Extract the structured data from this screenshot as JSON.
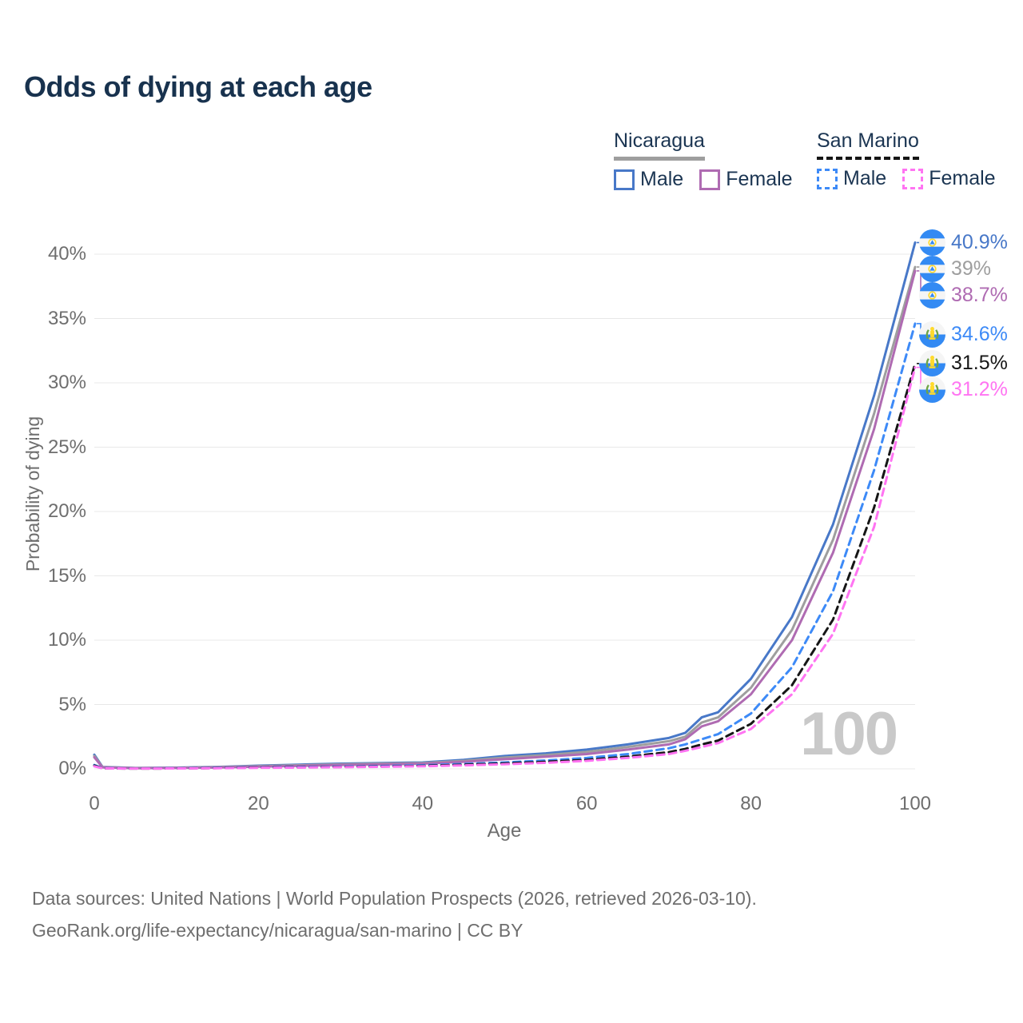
{
  "title": "Odds of dying at each age",
  "legend": {
    "groups": [
      {
        "name": "Nicaragua",
        "line_style": "solid",
        "line_color": "#9e9e9e",
        "items": [
          {
            "label": "Male",
            "color": "#4878c8",
            "style": "solid"
          },
          {
            "label": "Female",
            "color": "#af6bb2",
            "style": "solid"
          }
        ]
      },
      {
        "name": "San Marino",
        "line_style": "dashed",
        "line_color": "#161616",
        "items": [
          {
            "label": "Male",
            "color": "#3d8af7",
            "style": "dashed"
          },
          {
            "label": "Female",
            "color": "#ff74f2",
            "style": "dashed"
          }
        ]
      }
    ]
  },
  "chart_data": {
    "type": "line",
    "title": "Odds of dying at each age",
    "xlabel": "Age",
    "ylabel": "Probability of dying",
    "xlim": [
      0,
      100
    ],
    "ylim": [
      0,
      42
    ],
    "x_ticks": [
      0,
      20,
      40,
      60,
      80,
      100
    ],
    "y_ticks": [
      0,
      5,
      10,
      15,
      20,
      25,
      30,
      35,
      40
    ],
    "y_tick_suffix": "%",
    "grid": true,
    "legend_position": "top-right",
    "watermark": "100",
    "ages": [
      0,
      1,
      5,
      10,
      15,
      20,
      25,
      30,
      35,
      40,
      45,
      50,
      55,
      60,
      65,
      70,
      72,
      74,
      76,
      80,
      85,
      90,
      95,
      100
    ],
    "series": [
      {
        "name": "Nicaragua Male",
        "color": "#4878c8",
        "dashed": false,
        "flag": "nicaragua",
        "end_label": "40.9%",
        "values": [
          1.1,
          0.15,
          0.07,
          0.09,
          0.15,
          0.25,
          0.33,
          0.4,
          0.45,
          0.5,
          0.7,
          1.0,
          1.2,
          1.5,
          1.9,
          2.4,
          2.8,
          4.0,
          4.4,
          7.0,
          11.8,
          19.0,
          29.0,
          40.9
        ]
      },
      {
        "name": "Nicaragua Both Sexes",
        "color": "#9e9e9e",
        "dashed": false,
        "flag": "nicaragua",
        "end_label": "39%",
        "values": [
          1.0,
          0.13,
          0.06,
          0.08,
          0.13,
          0.21,
          0.28,
          0.35,
          0.4,
          0.45,
          0.62,
          0.88,
          1.07,
          1.32,
          1.7,
          2.15,
          2.5,
          3.6,
          4.0,
          6.3,
          10.8,
          17.8,
          27.6,
          39.0
        ]
      },
      {
        "name": "Nicaragua Female",
        "color": "#af6bb2",
        "dashed": false,
        "flag": "nicaragua",
        "end_label": "38.7%",
        "values": [
          0.9,
          0.12,
          0.05,
          0.07,
          0.11,
          0.17,
          0.23,
          0.3,
          0.35,
          0.4,
          0.55,
          0.75,
          0.95,
          1.15,
          1.5,
          1.9,
          2.3,
          3.3,
          3.7,
          5.8,
          10.0,
          16.8,
          26.4,
          38.7
        ]
      },
      {
        "name": "San Marino Male",
        "color": "#3d8af7",
        "dashed": true,
        "flag": "san-marino",
        "end_label": "34.6%",
        "values": [
          0.3,
          0.05,
          0.03,
          0.04,
          0.08,
          0.12,
          0.15,
          0.18,
          0.22,
          0.28,
          0.38,
          0.5,
          0.65,
          0.85,
          1.15,
          1.6,
          1.9,
          2.3,
          2.7,
          4.3,
          7.9,
          13.8,
          23.2,
          34.6
        ]
      },
      {
        "name": "San Marino Both Sexes",
        "color": "#161616",
        "dashed": true,
        "flag": "san-marino",
        "end_label": "31.5%",
        "values": [
          0.25,
          0.04,
          0.02,
          0.03,
          0.06,
          0.1,
          0.12,
          0.15,
          0.18,
          0.23,
          0.32,
          0.42,
          0.55,
          0.7,
          0.95,
          1.3,
          1.55,
          1.9,
          2.2,
          3.5,
          6.5,
          11.6,
          20.3,
          31.5
        ]
      },
      {
        "name": "San Marino Female",
        "color": "#ff74f2",
        "dashed": true,
        "flag": "san-marino",
        "end_label": "31.2%",
        "values": [
          0.2,
          0.04,
          0.02,
          0.03,
          0.05,
          0.08,
          0.1,
          0.13,
          0.16,
          0.2,
          0.27,
          0.36,
          0.47,
          0.62,
          0.85,
          1.15,
          1.4,
          1.7,
          2.0,
          3.1,
          5.8,
          10.5,
          18.8,
          31.2
        ]
      }
    ],
    "flag_colors": {
      "blue": "#338af3",
      "white": "#f5f5f5",
      "gold": "#ffda2c",
      "green": "#6da544"
    }
  },
  "footer": {
    "line1": "Data sources: United Nations | World Population Prospects (2026, retrieved 2026-03-10).",
    "line2": "GeoRank.org/life-expectancy/nicaragua/san-marino | CC BY"
  }
}
